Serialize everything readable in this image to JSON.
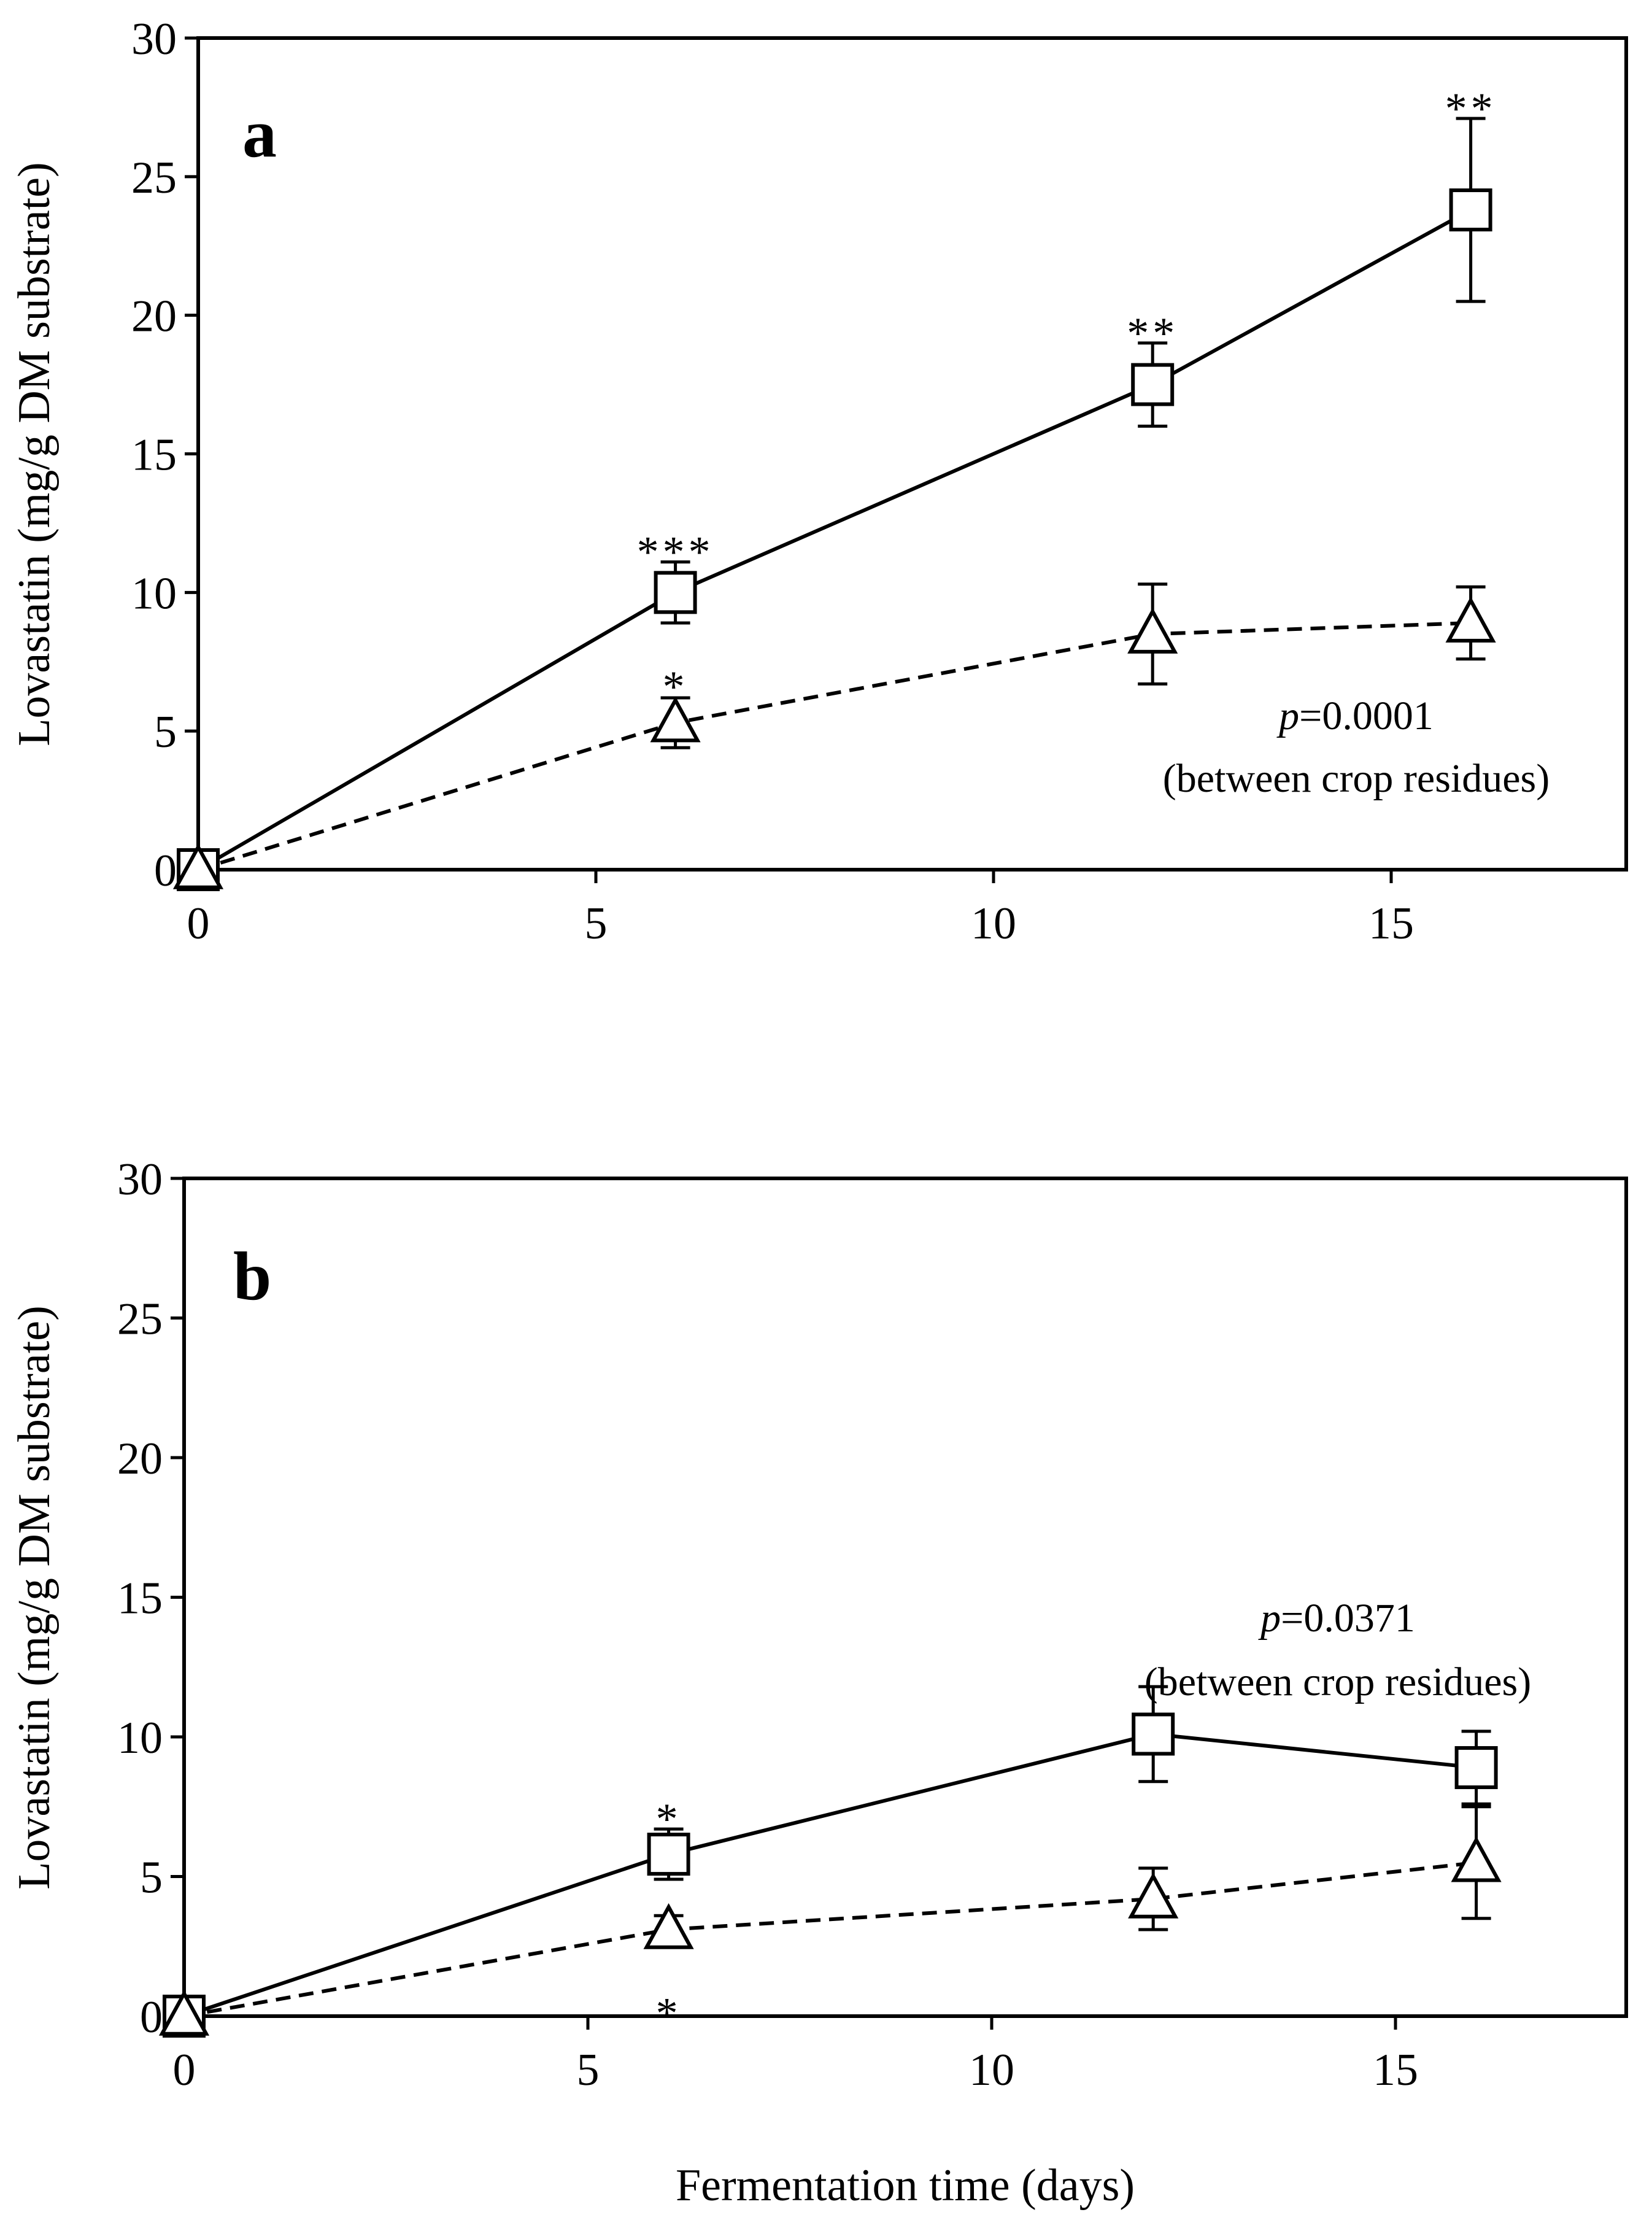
{
  "chart_data": [
    {
      "type": "line",
      "panel_label": "a",
      "xlabel": "",
      "ylabel": "Lovastatin (mg/g DM substrate)",
      "xlim": [
        0,
        18
      ],
      "ylim": [
        0,
        30
      ],
      "x_ticks": [
        "0",
        "5",
        "10",
        "15"
      ],
      "y_ticks": [
        "0",
        "5",
        "10",
        "15",
        "20",
        "25",
        "30"
      ],
      "series": [
        {
          "name": "squares",
          "marker": "square",
          "line": "solid",
          "x": [
            0,
            6,
            12,
            16
          ],
          "values": [
            0,
            10.0,
            17.5,
            23.8
          ],
          "errors": [
            0,
            1.1,
            1.5,
            3.3
          ],
          "significance": [
            "",
            "***",
            "**",
            "**"
          ]
        },
        {
          "name": "triangles",
          "marker": "triangle",
          "line": "dashed",
          "x": [
            0,
            6,
            12,
            16
          ],
          "values": [
            0,
            5.3,
            8.5,
            8.9
          ],
          "errors": [
            0,
            0.9,
            1.8,
            1.3
          ],
          "significance": [
            "",
            "*",
            "",
            ""
          ]
        }
      ],
      "annotation": {
        "p_symbol": "p",
        "p_value": "=0.0001",
        "note": "(between crop residues)"
      }
    },
    {
      "type": "line",
      "panel_label": "b",
      "xlabel": "Fermentation time (days)",
      "ylabel": "Lovastatin (mg/g DM substrate)",
      "xlim": [
        0,
        18
      ],
      "ylim": [
        0,
        30
      ],
      "x_ticks": [
        "0",
        "5",
        "10",
        "15"
      ],
      "y_ticks": [
        "0",
        "5",
        "10",
        "15",
        "20",
        "25",
        "30"
      ],
      "series": [
        {
          "name": "squares",
          "marker": "square",
          "line": "solid",
          "x": [
            0,
            6,
            12,
            16
          ],
          "values": [
            0,
            5.8,
            10.1,
            8.9
          ],
          "errors": [
            0,
            0.9,
            1.7,
            1.3
          ],
          "significance": [
            "",
            "*",
            "",
            ""
          ]
        },
        {
          "name": "triangles",
          "marker": "triangle",
          "line": "dashed",
          "x": [
            0,
            6,
            12,
            16
          ],
          "values": [
            0,
            3.1,
            4.2,
            5.5
          ],
          "errors": [
            0,
            0.5,
            1.1,
            2.0
          ],
          "significance": [
            "",
            "*",
            "",
            ""
          ]
        }
      ],
      "annotation": {
        "p_symbol": "p",
        "p_value": "=0.0371",
        "note": "(between crop residues)"
      }
    }
  ]
}
